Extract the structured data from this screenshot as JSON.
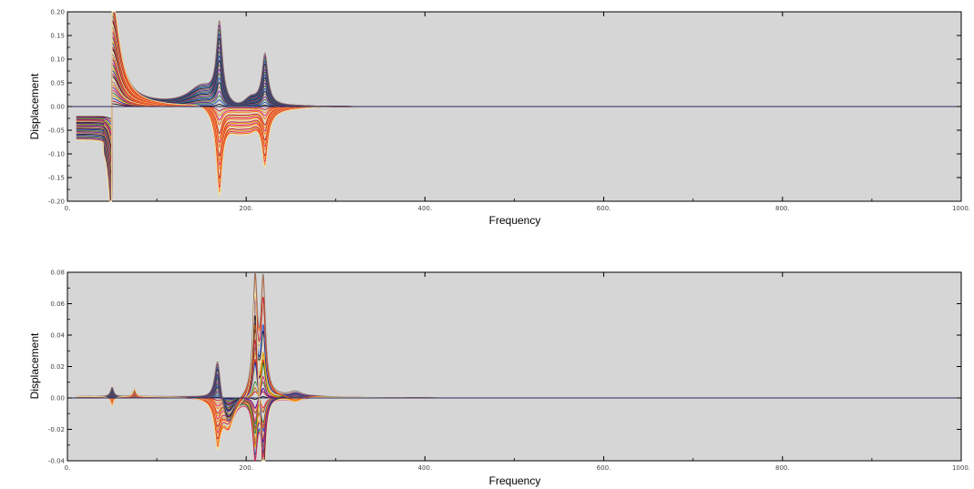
{
  "chart_data": [
    {
      "type": "line",
      "title": "",
      "xlabel": "Frequency",
      "ylabel": "Displacement",
      "xlim": [
        0,
        1000
      ],
      "ylim": [
        -0.2,
        0.2
      ],
      "xticks": [
        0,
        200,
        400,
        600,
        800,
        1000
      ],
      "xtick_labels": [
        "0.",
        "200.",
        "400.",
        "600.",
        "800.",
        "1000."
      ],
      "yticks": [
        -0.2,
        -0.15,
        -0.1,
        -0.05,
        0,
        0.05,
        0.1,
        0.15,
        0.2
      ],
      "ytick_labels": [
        "-0.20",
        "-0.15",
        "-0.10",
        "-0.05",
        "0.00",
        "0.05",
        "0.10",
        "0.15",
        "0.20"
      ],
      "grid": false,
      "legend": "none",
      "series_count": 40,
      "resonances": [
        {
          "x": 50,
          "y_min": -0.2,
          "y_max": 0.2
        },
        {
          "x": 170,
          "y_min": -0.195,
          "y_max": 0.175
        },
        {
          "x": 220,
          "y_min": -0.135,
          "y_max": 0.115
        }
      ],
      "background": "#d6d6d6"
    },
    {
      "type": "line",
      "title": "",
      "xlabel": "Frequency",
      "ylabel": "Displacement",
      "xlim": [
        0,
        1000
      ],
      "ylim": [
        -0.04,
        0.08
      ],
      "xticks": [
        0,
        200,
        400,
        600,
        800,
        1000
      ],
      "xtick_labels": [
        "0.",
        "200.",
        "400.",
        "600.",
        "800.",
        "1000."
      ],
      "yticks": [
        -0.04,
        -0.02,
        0,
        0.02,
        0.04,
        0.06,
        0.08
      ],
      "ytick_labels": [
        "-0.04",
        "-0.02",
        "0.00",
        "0.02",
        "0.04",
        "0.06",
        "0.08"
      ],
      "grid": false,
      "legend": "none",
      "series_count": 40,
      "resonances": [
        {
          "x": 50,
          "y_min": -0.008,
          "y_max": 0.006
        },
        {
          "x": 75,
          "y_min": -0.004,
          "y_max": 0.006
        },
        {
          "x": 170,
          "y_min": -0.03,
          "y_max": 0.028
        },
        {
          "x": 210,
          "y_min": -0.04,
          "y_max": 0.075
        },
        {
          "x": 220,
          "y_min": -0.038,
          "y_max": 0.073
        }
      ],
      "background": "#d6d6d6"
    }
  ],
  "palette": [
    "#1a1a1a",
    "#c8102e",
    "#1f3fbf",
    "#e8a000",
    "#2e7d32",
    "#e91e63",
    "#6a1b9a",
    "#ff6f00",
    "#8d6e63",
    "#f4e4a0"
  ]
}
